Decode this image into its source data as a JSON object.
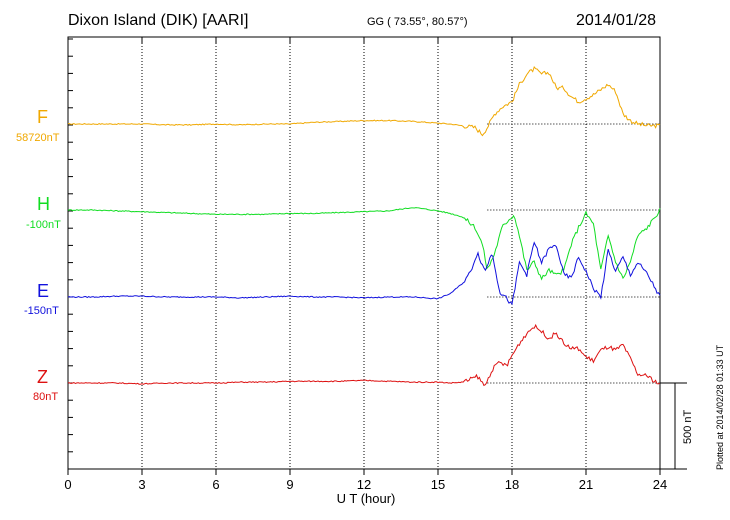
{
  "header": {
    "station": "Dixon Island (DIK)  [AARI]",
    "coords": "GG ( 73.55°,  80.57°)",
    "date": "2014/01/28"
  },
  "footnote": "Plotted at 2014/02/28 01:33 UT",
  "colors": {
    "F": "#f0a800",
    "H": "#11dd22",
    "E": "#1111dd",
    "Z": "#dd1111"
  },
  "chart_data": {
    "type": "line",
    "title": "Dixon Island (DIK)  [AARI]",
    "xlabel": "U T (hour)",
    "ylabel": "",
    "xlim": [
      0,
      24
    ],
    "x_ticks": [
      "0",
      "3",
      "6",
      "9",
      "12",
      "15",
      "18",
      "21",
      "24"
    ],
    "scale_bar": {
      "value_nT": 500,
      "label": "500 nT"
    },
    "channels": [
      {
        "name": "F",
        "baseline": "58720nT",
        "color": "#f0a800",
        "x": [
          0,
          1,
          2,
          3,
          4,
          5,
          6,
          7,
          8,
          9,
          10,
          11,
          12,
          13,
          14,
          15,
          15.5,
          16,
          16.5,
          16.8,
          17,
          17.3,
          17.6,
          18,
          18.3,
          18.6,
          18.9,
          19.2,
          19.5,
          19.8,
          20.1,
          20.4,
          20.7,
          21,
          21.3,
          21.6,
          21.9,
          22.2,
          22.5,
          22.8,
          23.1,
          23.5,
          24
        ],
        "values": [
          0,
          0,
          0,
          0,
          -5,
          -5,
          0,
          -5,
          0,
          0,
          10,
          15,
          20,
          20,
          15,
          5,
          0,
          -10,
          -20,
          -60,
          -20,
          60,
          100,
          130,
          230,
          290,
          320,
          290,
          300,
          210,
          210,
          160,
          130,
          150,
          170,
          200,
          230,
          190,
          60,
          20,
          0,
          -10,
          -10
        ]
      },
      {
        "name": "H",
        "baseline": "-100nT",
        "color": "#11dd22",
        "x": [
          0,
          1,
          2,
          3,
          4,
          5,
          6,
          7,
          8,
          9,
          10,
          11,
          12,
          13,
          14,
          14.5,
          15,
          15.5,
          16,
          16.5,
          16.8,
          17,
          17.3,
          17.6,
          17.9,
          18.1,
          18.3,
          18.6,
          18.9,
          19.2,
          19.5,
          19.8,
          20.1,
          20.4,
          20.7,
          21,
          21.3,
          21.6,
          21.9,
          22.2,
          22.5,
          22.8,
          23.1,
          23.5,
          24
        ],
        "values": [
          0,
          0,
          -5,
          -10,
          -15,
          -20,
          -25,
          -25,
          -25,
          -20,
          -20,
          -15,
          -10,
          -5,
          15,
          5,
          -5,
          -20,
          -40,
          -100,
          -200,
          -350,
          -250,
          -100,
          -50,
          -30,
          -150,
          -350,
          -300,
          -400,
          -350,
          -380,
          -350,
          -200,
          -100,
          -20,
          -80,
          -350,
          -150,
          -300,
          -400,
          -300,
          -150,
          -100,
          0
        ]
      },
      {
        "name": "E",
        "baseline": "-150nT",
        "color": "#1111dd",
        "x": [
          0,
          1,
          2,
          3,
          4,
          5,
          6,
          7,
          8,
          9,
          10,
          11,
          12,
          13,
          14,
          15,
          15.5,
          16,
          16.3,
          16.6,
          16.9,
          17.2,
          17.5,
          17.8,
          18,
          18.3,
          18.6,
          18.9,
          19.2,
          19.5,
          19.8,
          20.1,
          20.4,
          20.7,
          21,
          21.3,
          21.6,
          21.9,
          22.2,
          22.5,
          22.8,
          23.1,
          23.5,
          24
        ],
        "values": [
          0,
          0,
          5,
          5,
          0,
          0,
          0,
          -5,
          0,
          5,
          0,
          0,
          -5,
          0,
          0,
          -10,
          20,
          80,
          140,
          260,
          150,
          260,
          30,
          -10,
          -50,
          200,
          130,
          320,
          200,
          280,
          300,
          130,
          110,
          230,
          150,
          50,
          0,
          270,
          150,
          230,
          130,
          200,
          130,
          0
        ]
      },
      {
        "name": "Z",
        "baseline": "80nT",
        "color": "#dd1111",
        "x": [
          0,
          1,
          2,
          3,
          4,
          5,
          6,
          7,
          8,
          9,
          10,
          11,
          12,
          13,
          14,
          15,
          15.5,
          16,
          16.3,
          16.6,
          16.9,
          17.2,
          17.5,
          17.8,
          18,
          18.3,
          18.6,
          18.9,
          19.2,
          19.5,
          19.8,
          20.1,
          20.4,
          20.7,
          21,
          21.3,
          21.6,
          21.9,
          22.2,
          22.5,
          22.8,
          23.1,
          23.5,
          24
        ],
        "values": [
          0,
          0,
          0,
          -5,
          0,
          0,
          0,
          5,
          5,
          10,
          10,
          10,
          15,
          10,
          5,
          5,
          0,
          5,
          20,
          40,
          -20,
          80,
          120,
          100,
          160,
          230,
          290,
          330,
          300,
          260,
          290,
          230,
          200,
          200,
          150,
          130,
          190,
          210,
          190,
          220,
          140,
          50,
          40,
          -10
        ]
      }
    ]
  }
}
